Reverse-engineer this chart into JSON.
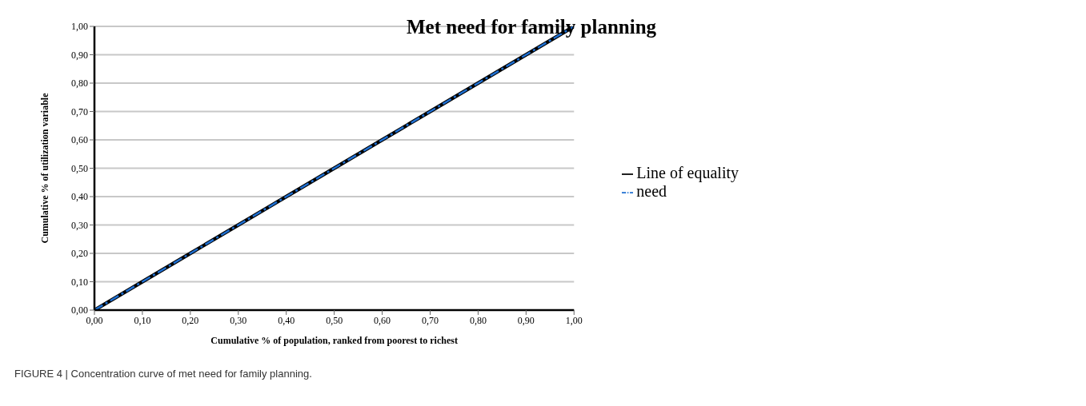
{
  "chart_data": {
    "type": "line",
    "title": "Met need for family planning",
    "xlabel": "Cumulative % of population, ranked from poorest to richest",
    "ylabel": "Cumulative % of utilization variable",
    "annotations": [
      "FIGURE 4 | Concentration curve of met need for family planning."
    ],
    "x": [
      0,
      0.1,
      0.2,
      0.3,
      0.4,
      0.5,
      0.6,
      0.7,
      0.8,
      0.9,
      1
    ],
    "series": [
      {
        "name": "Line of equality",
        "color": "#000000",
        "line_style": "solid",
        "values": [
          0,
          0.1,
          0.2,
          0.3,
          0.4,
          0.5,
          0.6,
          0.7,
          0.8,
          0.9,
          1
        ]
      },
      {
        "name": "need",
        "color": "#1f6fd1",
        "line_style": "dashed",
        "values": [
          0,
          0.1,
          0.2,
          0.3,
          0.4,
          0.5,
          0.6,
          0.7,
          0.8,
          0.9,
          1
        ]
      }
    ],
    "xlim": [
      0,
      1
    ],
    "ylim": [
      0,
      1
    ],
    "xticks": [
      {
        "value": 0,
        "label": "0,00"
      },
      {
        "value": 0.1,
        "label": "0,10"
      },
      {
        "value": 0.2,
        "label": "0,20"
      },
      {
        "value": 0.3,
        "label": "0,30"
      },
      {
        "value": 0.4,
        "label": "0,40"
      },
      {
        "value": 0.5,
        "label": "0,50"
      },
      {
        "value": 0.6,
        "label": "0,60"
      },
      {
        "value": 0.7,
        "label": "0,70"
      },
      {
        "value": 0.8,
        "label": "0,80"
      },
      {
        "value": 0.9,
        "label": "0,90"
      },
      {
        "value": 1,
        "label": "1,00"
      }
    ],
    "yticks": [
      {
        "value": 0,
        "label": "0,00"
      },
      {
        "value": 0.1,
        "label": "0,10"
      },
      {
        "value": 0.2,
        "label": "0,20"
      },
      {
        "value": 0.3,
        "label": "0,30"
      },
      {
        "value": 0.4,
        "label": "0,40"
      },
      {
        "value": 0.5,
        "label": "0,50"
      },
      {
        "value": 0.6,
        "label": "0,60"
      },
      {
        "value": 0.7,
        "label": "0,70"
      },
      {
        "value": 0.8,
        "label": "0,80"
      },
      {
        "value": 0.9,
        "label": "0,90"
      },
      {
        "value": 1,
        "label": "1,00"
      }
    ],
    "grid": "y",
    "legend": "right",
    "marker": "none"
  }
}
